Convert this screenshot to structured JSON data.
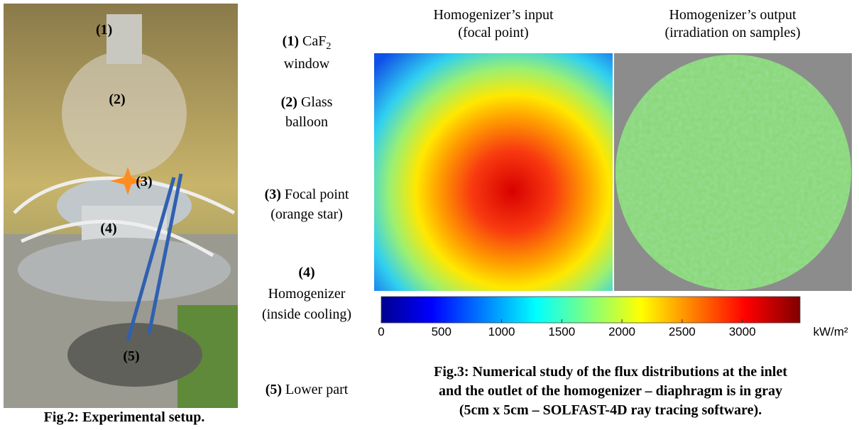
{
  "photo": {
    "labels": [
      "(1)",
      "(2)",
      "(3)",
      "(4)",
      "(5)"
    ],
    "caption": "Fig.2: Experimental setup."
  },
  "parts": [
    {
      "number": "(1)",
      "text": "CaF",
      "sub": "2",
      "line2": "window"
    },
    {
      "number": "(2)",
      "text": "Glass",
      "line2": "balloon"
    },
    {
      "number": "(3)",
      "text": "Focal point",
      "line2": "(orange star)"
    },
    {
      "number": "(4)",
      "line2": "Homogenizer",
      "line3": "(inside cooling)"
    },
    {
      "number": "(5)",
      "text": "Lower part"
    }
  ],
  "maps": [
    {
      "title": [
        "Homogenizer’s input",
        "(focal point)"
      ]
    },
    {
      "title": [
        "Homogenizer’s output",
        "(irradiation on samples)"
      ]
    }
  ],
  "colorbar": {
    "lim": [
      0,
      3480
    ],
    "ticks": [
      0,
      500,
      1000,
      1500,
      2000,
      2500,
      3000
    ],
    "unit": "kW/m²"
  },
  "caption": [
    "Fig.3: Numerical study of the flux distributions at the inlet",
    "and the outlet of the homogenizer – diaphragm is in gray",
    "(5cm x 5cm – SOLFAST-4D ray tracing software)."
  ]
}
